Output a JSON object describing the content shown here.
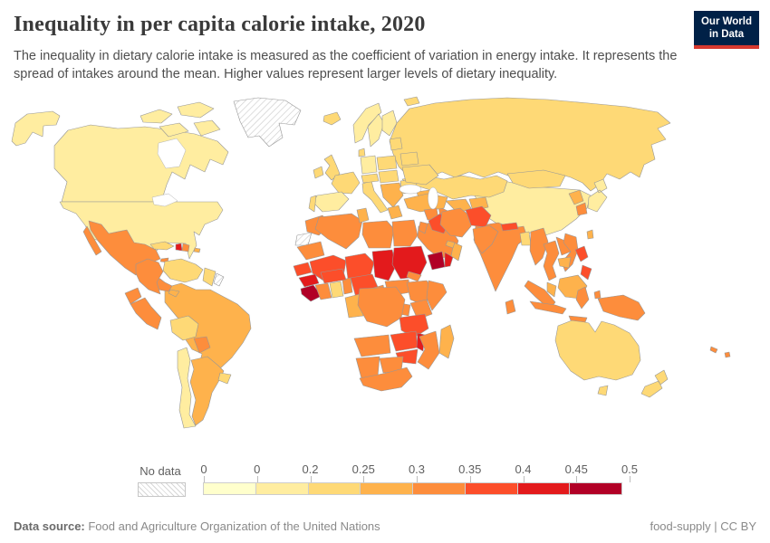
{
  "header": {
    "title": "Inequality in per capita calorie intake, 2020",
    "subtitle": "The inequality in dietary calorie intake is measured as the coefficient of variation in energy intake. It represents the spread of intakes around the mean. Higher values represent larger levels of dietary inequality."
  },
  "logo": {
    "line1": "Our World",
    "line2": "in Data",
    "bg_color": "#002147",
    "accent_color": "#D7382E"
  },
  "legend": {
    "no_data_label": "No data",
    "tick_labels": [
      "0",
      "0",
      "0.2",
      "0.25",
      "0.3",
      "0.35",
      "0.4",
      "0.45",
      "0.5"
    ],
    "colors": [
      "#FFFFCC",
      "#FFEDA0",
      "#FED976",
      "#FEB24C",
      "#FD8D3C",
      "#FC4E2A",
      "#E31A1C",
      "#B10026"
    ]
  },
  "footer": {
    "source_label": "Data source:",
    "source_text": " Food and Agriculture Organization of the United Nations",
    "right_text": "food-supply | CC BY"
  },
  "chart_data": {
    "type": "choropleth_map",
    "title": "Inequality in per capita calorie intake, 2020",
    "metric": "Coefficient of variation in energy intake",
    "year": 2020,
    "legend_position": "bottom",
    "bin_edges_as_shown": [
      "0",
      "0",
      "0.2",
      "0.25",
      "0.3",
      "0.35",
      "0.4",
      "0.45",
      "0.5"
    ],
    "bin_ranges": [
      "0–0",
      "0–0.2",
      "0.2–0.25",
      "0.25–0.3",
      "0.3–0.35",
      "0.35–0.4",
      "0.4–0.45",
      "0.45–0.5"
    ],
    "no_data_value": -1,
    "regions": [
      {
        "id": "russia",
        "name": "Russia",
        "bin": 2
      },
      {
        "id": "canada",
        "name": "Canada",
        "bin": 1
      },
      {
        "id": "canada-arctic",
        "name": "Canadian Arctic Islands",
        "bin": 1
      },
      {
        "id": "alaska",
        "name": "Alaska (United States)",
        "bin": 1
      },
      {
        "id": "usa",
        "name": "United States",
        "bin": 1
      },
      {
        "id": "greenland",
        "name": "Greenland",
        "bin": -1
      },
      {
        "id": "iceland",
        "name": "Iceland",
        "bin": 2
      },
      {
        "id": "mexico",
        "name": "Mexico",
        "bin": 4
      },
      {
        "id": "central-america",
        "name": "Central America",
        "bin": 4
      },
      {
        "id": "panama",
        "name": "Panama",
        "bin": 3
      },
      {
        "id": "cuba",
        "name": "Cuba",
        "bin": 2
      },
      {
        "id": "jamaica",
        "name": "Jamaica",
        "bin": 4
      },
      {
        "id": "haiti",
        "name": "Haiti",
        "bin": 6
      },
      {
        "id": "dominican-republic",
        "name": "Dominican Republic",
        "bin": 4
      },
      {
        "id": "puerto-rico",
        "name": "Puerto Rico",
        "bin": 3
      },
      {
        "id": "colombia",
        "name": "Colombia",
        "bin": 4
      },
      {
        "id": "venezuela",
        "name": "Venezuela",
        "bin": 2
      },
      {
        "id": "guyana-suriname",
        "name": "Guyana and Suriname",
        "bin": 2
      },
      {
        "id": "french-guiana",
        "name": "French Guiana",
        "bin": -1
      },
      {
        "id": "ecuador",
        "name": "Ecuador",
        "bin": 4
      },
      {
        "id": "peru",
        "name": "Peru",
        "bin": 4
      },
      {
        "id": "brazil",
        "name": "Brazil",
        "bin": 3
      },
      {
        "id": "bolivia",
        "name": "Bolivia",
        "bin": 2
      },
      {
        "id": "paraguay",
        "name": "Paraguay",
        "bin": 4
      },
      {
        "id": "chile",
        "name": "Chile",
        "bin": 1
      },
      {
        "id": "argentina",
        "name": "Argentina",
        "bin": 3
      },
      {
        "id": "uruguay",
        "name": "Uruguay",
        "bin": 2
      },
      {
        "id": "ireland",
        "name": "Ireland",
        "bin": 2
      },
      {
        "id": "uk",
        "name": "United Kingdom",
        "bin": 2
      },
      {
        "id": "norway",
        "name": "Norway",
        "bin": 1
      },
      {
        "id": "sweden",
        "name": "Sweden",
        "bin": 1
      },
      {
        "id": "finland",
        "name": "Finland",
        "bin": 1
      },
      {
        "id": "denmark",
        "name": "Denmark",
        "bin": 2
      },
      {
        "id": "baltics",
        "name": "Baltic states",
        "bin": 2
      },
      {
        "id": "poland",
        "name": "Poland",
        "bin": 2
      },
      {
        "id": "germany",
        "name": "Germany",
        "bin": 1
      },
      {
        "id": "france",
        "name": "France",
        "bin": 2
      },
      {
        "id": "spain",
        "name": "Spain",
        "bin": 1
      },
      {
        "id": "portugal",
        "name": "Portugal",
        "bin": 2
      },
      {
        "id": "italy",
        "name": "Italy",
        "bin": 2
      },
      {
        "id": "alps",
        "name": "Switzerland and Austria",
        "bin": 2
      },
      {
        "id": "central-europe",
        "name": "Central Europe",
        "bin": 2
      },
      {
        "id": "balkans",
        "name": "Balkans",
        "bin": 3
      },
      {
        "id": "greece",
        "name": "Greece",
        "bin": 3
      },
      {
        "id": "romania",
        "name": "Romania",
        "bin": 2
      },
      {
        "id": "belarus",
        "name": "Belarus",
        "bin": 2
      },
      {
        "id": "ukraine",
        "name": "Ukraine",
        "bin": 2
      },
      {
        "id": "svalbard",
        "name": "Svalbard",
        "bin": 2
      },
      {
        "id": "kazakhstan",
        "name": "Kazakhstan",
        "bin": 2
      },
      {
        "id": "uzbekistan",
        "name": "Uzbekistan",
        "bin": 3
      },
      {
        "id": "turkmenistan",
        "name": "Turkmenistan",
        "bin": 4
      },
      {
        "id": "kyrgyzstan-tajikistan",
        "name": "Kyrgyzstan and Tajikistan",
        "bin": 3
      },
      {
        "id": "caucasus",
        "name": "Caucasus",
        "bin": 3
      },
      {
        "id": "turkey",
        "name": "Turkey",
        "bin": 3
      },
      {
        "id": "syria",
        "name": "Syria",
        "bin": 4
      },
      {
        "id": "jordan",
        "name": "Jordan",
        "bin": 4
      },
      {
        "id": "iraq",
        "name": "Iraq",
        "bin": 5
      },
      {
        "id": "saudi-arabia",
        "name": "Saudi Arabia",
        "bin": 4
      },
      {
        "id": "yemen",
        "name": "Yemen",
        "bin": 7
      },
      {
        "id": "yemen-east",
        "name": "Yemen (east)",
        "bin": 6
      },
      {
        "id": "oman",
        "name": "Oman",
        "bin": 3
      },
      {
        "id": "uae",
        "name": "United Arab Emirates",
        "bin": 3
      },
      {
        "id": "iran",
        "name": "Iran",
        "bin": 4
      },
      {
        "id": "afghanistan",
        "name": "Afghanistan",
        "bin": 5
      },
      {
        "id": "pakistan",
        "name": "Pakistan",
        "bin": 4
      },
      {
        "id": "morocco",
        "name": "Morocco",
        "bin": 4
      },
      {
        "id": "western-sahara",
        "name": "Western Sahara",
        "bin": -1
      },
      {
        "id": "mauritania",
        "name": "Mauritania",
        "bin": 4
      },
      {
        "id": "algeria",
        "name": "Algeria",
        "bin": 4
      },
      {
        "id": "tunisia",
        "name": "Tunisia",
        "bin": 3
      },
      {
        "id": "libya",
        "name": "Libya",
        "bin": 4
      },
      {
        "id": "egypt",
        "name": "Egypt",
        "bin": 4
      },
      {
        "id": "mali",
        "name": "Mali",
        "bin": 5
      },
      {
        "id": "niger",
        "name": "Niger",
        "bin": 5
      },
      {
        "id": "chad",
        "name": "Chad",
        "bin": 6
      },
      {
        "id": "sudan",
        "name": "Sudan",
        "bin": 6
      },
      {
        "id": "eritrea",
        "name": "Eritrea",
        "bin": 4
      },
      {
        "id": "senegal",
        "name": "Senegal",
        "bin": 5
      },
      {
        "id": "guinea",
        "name": "Guinea",
        "bin": 6
      },
      {
        "id": "sierra-leone-liberia",
        "name": "Sierra Leone and Liberia",
        "bin": 7
      },
      {
        "id": "ivory-coast",
        "name": "Côte d'Ivoire",
        "bin": 4
      },
      {
        "id": "ghana",
        "name": "Ghana",
        "bin": 2
      },
      {
        "id": "togo-benin",
        "name": "Togo and Benin",
        "bin": 4
      },
      {
        "id": "burkina-faso",
        "name": "Burkina Faso",
        "bin": 5
      },
      {
        "id": "nigeria",
        "name": "Nigeria",
        "bin": 5
      },
      {
        "id": "cameroon",
        "name": "Cameroon",
        "bin": 4
      },
      {
        "id": "central-african-republic",
        "name": "Central African Republic",
        "bin": 4
      },
      {
        "id": "ethiopia",
        "name": "Ethiopia",
        "bin": 4
      },
      {
        "id": "somalia",
        "name": "Somalia",
        "bin": 4
      },
      {
        "id": "kenya",
        "name": "Kenya",
        "bin": 4
      },
      {
        "id": "uganda",
        "name": "Uganda",
        "bin": 4
      },
      {
        "id": "gabon-congo",
        "name": "Gabon and Congo",
        "bin": 3
      },
      {
        "id": "drc",
        "name": "Democratic Republic of Congo",
        "bin": 4
      },
      {
        "id": "tanzania",
        "name": "Tanzania",
        "bin": 5
      },
      {
        "id": "angola",
        "name": "Angola",
        "bin": 4
      },
      {
        "id": "zambia",
        "name": "Zambia",
        "bin": 5
      },
      {
        "id": "malawi",
        "name": "Malawi",
        "bin": 6
      },
      {
        "id": "mozambique",
        "name": "Mozambique",
        "bin": 4
      },
      {
        "id": "zimbabwe",
        "name": "Zimbabwe",
        "bin": 5
      },
      {
        "id": "namibia",
        "name": "Namibia",
        "bin": 4
      },
      {
        "id": "botswana",
        "name": "Botswana",
        "bin": 4
      },
      {
        "id": "south-africa",
        "name": "South Africa",
        "bin": 4
      },
      {
        "id": "madagascar",
        "name": "Madagascar",
        "bin": 3
      },
      {
        "id": "china",
        "name": "China",
        "bin": 1
      },
      {
        "id": "mongolia",
        "name": "Mongolia",
        "bin": 2
      },
      {
        "id": "north-korea",
        "name": "North Korea",
        "bin": 3
      },
      {
        "id": "south-korea",
        "name": "South Korea",
        "bin": 4
      },
      {
        "id": "japan",
        "name": "Japan",
        "bin": 1
      },
      {
        "id": "taiwan",
        "name": "Taiwan",
        "bin": 3
      },
      {
        "id": "india",
        "name": "India",
        "bin": 4
      },
      {
        "id": "nepal",
        "name": "Nepal",
        "bin": 5
      },
      {
        "id": "bangladesh",
        "name": "Bangladesh",
        "bin": 2
      },
      {
        "id": "sri-lanka",
        "name": "Sri Lanka",
        "bin": 4
      },
      {
        "id": "myanmar",
        "name": "Myanmar",
        "bin": 4
      },
      {
        "id": "thailand",
        "name": "Thailand",
        "bin": 4
      },
      {
        "id": "laos",
        "name": "Laos",
        "bin": 4
      },
      {
        "id": "vietnam",
        "name": "Vietnam",
        "bin": 4
      },
      {
        "id": "cambodia",
        "name": "Cambodia",
        "bin": 3
      },
      {
        "id": "malaysia",
        "name": "Malaysia",
        "bin": 3
      },
      {
        "id": "sumatra",
        "name": "Sumatra (Indonesia)",
        "bin": 4
      },
      {
        "id": "borneo",
        "name": "Borneo",
        "bin": 3
      },
      {
        "id": "java",
        "name": "Java (Indonesia)",
        "bin": 4
      },
      {
        "id": "sulawesi",
        "name": "Sulawesi (Indonesia)",
        "bin": 4
      },
      {
        "id": "moluccas",
        "name": "Moluccas (Indonesia)",
        "bin": 4
      },
      {
        "id": "lesser-sunda",
        "name": "Lesser Sunda Islands",
        "bin": 4
      },
      {
        "id": "philippines",
        "name": "Philippines",
        "bin": 5
      },
      {
        "id": "new-guinea",
        "name": "New Guinea",
        "bin": 4
      },
      {
        "id": "australia",
        "name": "Australia",
        "bin": 2
      },
      {
        "id": "tasmania",
        "name": "Tasmania (Australia)",
        "bin": 2
      },
      {
        "id": "new-zealand",
        "name": "New Zealand",
        "bin": 2
      },
      {
        "id": "fiji",
        "name": "Fiji",
        "bin": 4
      },
      {
        "id": "new-caledonia",
        "name": "New Caledonia",
        "bin": 4
      }
    ]
  }
}
